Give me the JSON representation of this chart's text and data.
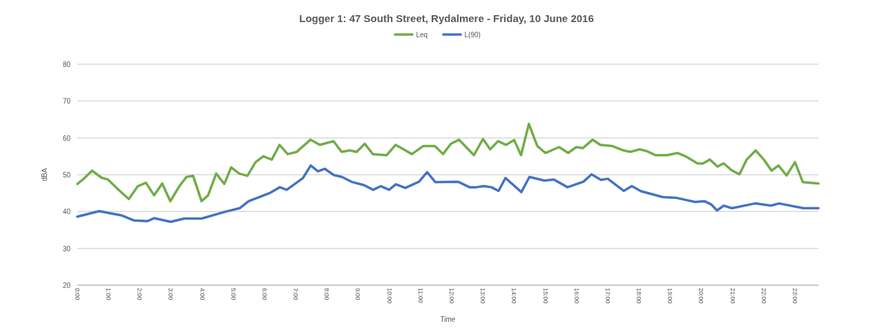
{
  "chart_data": {
    "type": "line",
    "title": "Logger 1: 47 South Street, Rydalmere - Friday, 10 June 2016",
    "xlabel": "Time",
    "ylabel": "dBA",
    "legend": "top",
    "grid": "y",
    "line_style": "solid",
    "marker": "none",
    "xlim": [
      0,
      23.75
    ],
    "xticks": [
      {
        "value": 0,
        "label": "0:00"
      },
      {
        "value": 1,
        "label": "1:00"
      },
      {
        "value": 2,
        "label": "2:00"
      },
      {
        "value": 3,
        "label": "3:00"
      },
      {
        "value": 4,
        "label": "4:00"
      },
      {
        "value": 5,
        "label": "5:00"
      },
      {
        "value": 6,
        "label": "6:00"
      },
      {
        "value": 7,
        "label": "7:00"
      },
      {
        "value": 8,
        "label": "8:00"
      },
      {
        "value": 9,
        "label": "9:00"
      },
      {
        "value": 10,
        "label": "10:00"
      },
      {
        "value": 11,
        "label": "11:00"
      },
      {
        "value": 12,
        "label": "12:00"
      },
      {
        "value": 13,
        "label": "13:00"
      },
      {
        "value": 14,
        "label": "14:00"
      },
      {
        "value": 15,
        "label": "15:00"
      },
      {
        "value": 16,
        "label": "16:00"
      },
      {
        "value": 17,
        "label": "17:00"
      },
      {
        "value": 18,
        "label": "18:00"
      },
      {
        "value": 19,
        "label": "19:00"
      },
      {
        "value": 20,
        "label": "20:00"
      },
      {
        "value": 21,
        "label": "21:00"
      },
      {
        "value": 22,
        "label": "22:00"
      },
      {
        "value": 23,
        "label": "23:00"
      }
    ],
    "ylim": [
      20,
      80
    ],
    "yticks": [
      20,
      30,
      40,
      50,
      60,
      70,
      80
    ],
    "series": [
      {
        "name": "Leq",
        "color": "#70ad47",
        "x": [
          0,
          0.18,
          0.47,
          0.77,
          0.98,
          1.36,
          1.65,
          1.94,
          2.2,
          2.46,
          2.72,
          2.98,
          3.27,
          3.5,
          3.71,
          3.98,
          4.19,
          4.45,
          4.71,
          4.93,
          5.19,
          5.45,
          5.71,
          5.96,
          6.23,
          6.48,
          6.74,
          7.03,
          7.47,
          7.77,
          8.21,
          8.47,
          8.73,
          8.95,
          9.21,
          9.47,
          9.91,
          10.2,
          10.72,
          11.09,
          11.46,
          11.72,
          11.97,
          12.23,
          12.71,
          13.0,
          13.23,
          13.48,
          13.74,
          14.0,
          14.22,
          14.47,
          14.74,
          15.0,
          15.44,
          15.73,
          15.99,
          16.2,
          16.51,
          16.76,
          17.14,
          17.5,
          17.73,
          18.02,
          18.25,
          18.53,
          18.9,
          19.24,
          19.49,
          19.87,
          20.04,
          20.27,
          20.52,
          20.71,
          20.97,
          21.22,
          21.45,
          21.74,
          22.0,
          22.25,
          22.47,
          22.73,
          23.0,
          23.25,
          23.75
        ],
        "values": [
          47.5,
          48.7,
          51.1,
          49.2,
          48.7,
          45.6,
          43.4,
          46.9,
          47.8,
          44.4,
          47.6,
          42.8,
          46.9,
          49.4,
          49.7,
          42.8,
          44.4,
          50.3,
          47.5,
          52.0,
          50.3,
          49.7,
          53.4,
          55.0,
          54.1,
          58.1,
          55.6,
          56.2,
          59.5,
          58.1,
          59.1,
          56.2,
          56.6,
          56.2,
          58.4,
          55.6,
          55.3,
          58.1,
          55.6,
          57.8,
          57.8,
          55.6,
          58.4,
          59.5,
          55.3,
          59.7,
          56.9,
          59.1,
          58.1,
          59.4,
          55.3,
          63.8,
          57.8,
          55.9,
          57.5,
          55.9,
          57.5,
          57.2,
          59.5,
          58.1,
          57.8,
          56.6,
          56.2,
          56.9,
          56.4,
          55.3,
          55.3,
          55.9,
          55.0,
          53.1,
          53.0,
          54.1,
          52.2,
          53.1,
          51.2,
          50.1,
          54.1,
          56.6,
          54.1,
          51.1,
          52.5,
          49.8,
          53.4,
          48.0,
          47.6
        ]
      },
      {
        "name": "L(90)",
        "color": "#4472c4",
        "x": [
          0,
          0.7,
          1.07,
          1.4,
          1.81,
          2.25,
          2.47,
          2.99,
          3.43,
          3.98,
          4.76,
          5.2,
          5.49,
          6.16,
          6.49,
          6.71,
          7.23,
          7.48,
          7.71,
          7.93,
          8.22,
          8.48,
          8.81,
          9.18,
          9.48,
          9.73,
          9.99,
          10.21,
          10.51,
          10.95,
          11.21,
          11.47,
          12.2,
          12.57,
          12.79,
          13.02,
          13.27,
          13.5,
          13.72,
          14.23,
          14.49,
          14.97,
          15.27,
          15.71,
          16.22,
          16.48,
          16.78,
          17.0,
          17.51,
          17.77,
          18.07,
          18.77,
          19.21,
          19.8,
          20.1,
          20.32,
          20.5,
          20.72,
          20.98,
          21.72,
          22.23,
          22.49,
          23.27,
          23.75
        ],
        "values": [
          38.6,
          40.1,
          39.5,
          39.0,
          37.6,
          37.4,
          38.2,
          37.2,
          38.1,
          38.1,
          40.0,
          40.9,
          42.8,
          45.0,
          46.6,
          45.9,
          49.1,
          52.5,
          50.9,
          51.6,
          49.9,
          49.4,
          48.0,
          47.2,
          45.9,
          46.9,
          45.9,
          47.4,
          46.4,
          48.1,
          50.7,
          48.0,
          48.1,
          46.6,
          46.6,
          46.9,
          46.6,
          45.6,
          49.1,
          45.3,
          49.4,
          48.4,
          48.7,
          46.6,
          48.1,
          50.1,
          48.6,
          48.9,
          45.6,
          46.9,
          45.5,
          43.9,
          43.7,
          42.6,
          42.8,
          41.9,
          40.3,
          41.6,
          40.9,
          42.2,
          41.6,
          42.2,
          40.9,
          40.9
        ]
      }
    ]
  }
}
